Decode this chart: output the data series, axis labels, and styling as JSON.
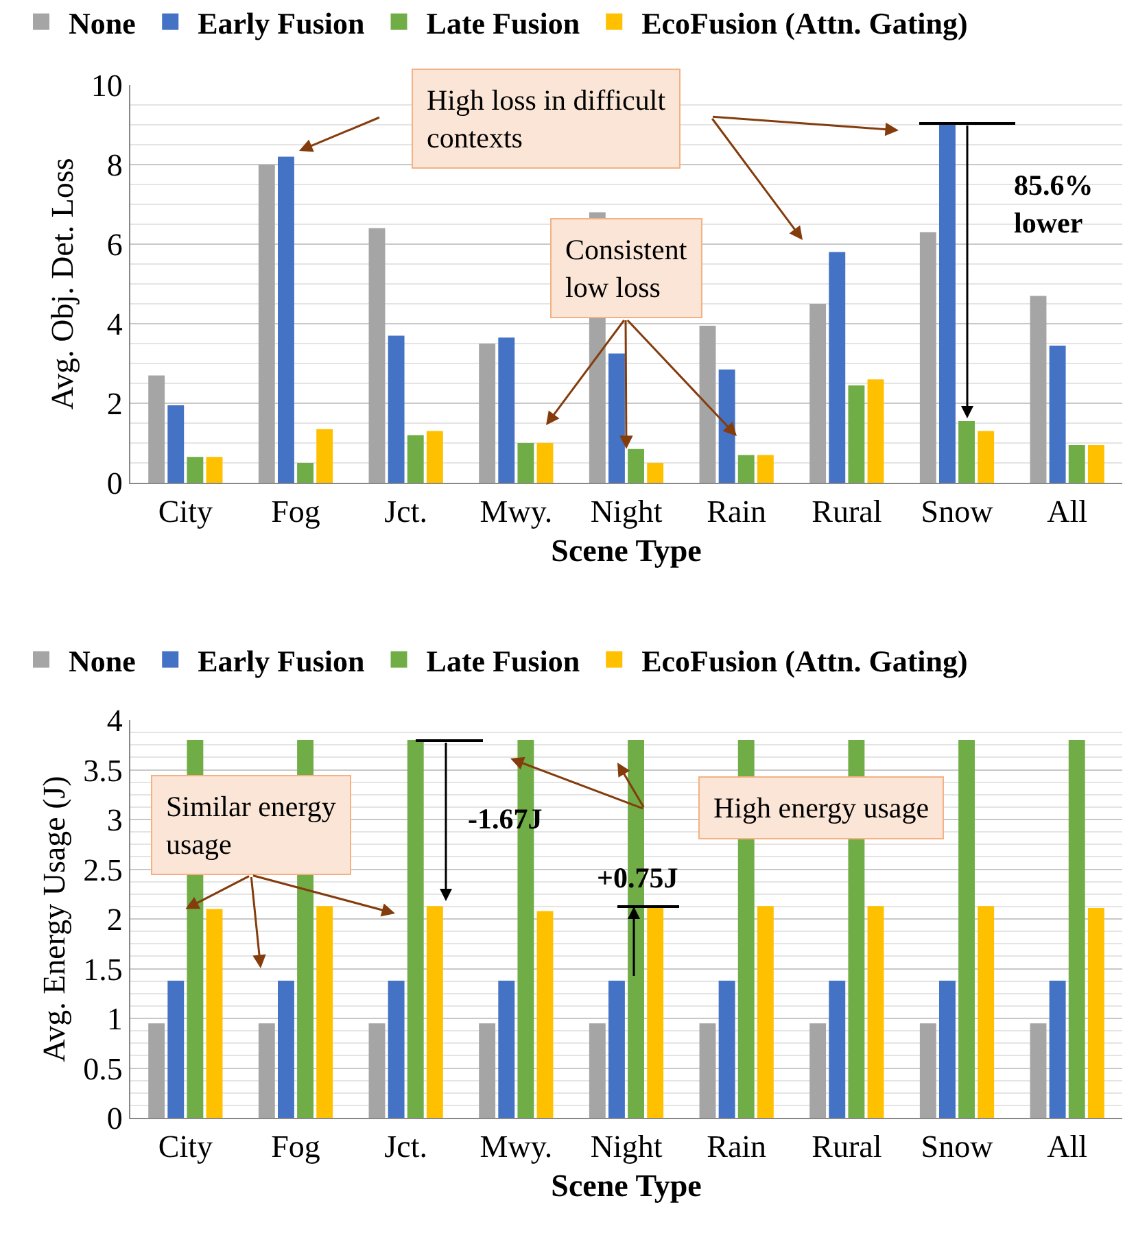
{
  "chart_data": [
    {
      "type": "bar",
      "xlabel": "Scene Type",
      "ylabel": "Avg. Obj. Det. Loss",
      "categories": [
        "City",
        "Fog",
        "Jct.",
        "Mwy.",
        "Night",
        "Rain",
        "Rural",
        "Snow",
        "All"
      ],
      "series": [
        {
          "name": "None",
          "color": "#a5a5a5",
          "values": [
            2.7,
            8.0,
            6.4,
            3.5,
            6.8,
            3.95,
            4.5,
            6.3,
            4.7
          ]
        },
        {
          "name": "Early Fusion",
          "color": "#4472c4",
          "values": [
            1.95,
            8.2,
            3.7,
            3.65,
            3.25,
            2.85,
            5.8,
            9.0,
            3.45
          ]
        },
        {
          "name": "Late Fusion",
          "color": "#70ad47",
          "values": [
            0.65,
            0.5,
            1.2,
            1.0,
            0.85,
            0.7,
            2.45,
            1.55,
            0.95
          ]
        },
        {
          "name": "EcoFusion (Attn. Gating)",
          "color": "#ffc000",
          "values": [
            0.65,
            1.35,
            1.3,
            1.0,
            0.5,
            0.7,
            2.6,
            1.3,
            0.95
          ]
        }
      ],
      "ylim": [
        0,
        10
      ],
      "yticks": [
        0,
        2,
        4,
        6,
        8,
        10
      ],
      "grid": "y",
      "legend": "top",
      "annotations": [
        "High loss in difficult contexts",
        {
          "text": "Consistent low loss",
          "x": "Night",
          "y": 0.85
        },
        "85.6% lower"
      ]
    },
    {
      "type": "bar",
      "xlabel": "Scene Type",
      "ylabel": "Avg. Energy Usage (J)",
      "categories": [
        "City",
        "Fog",
        "Jct.",
        "Mwy.",
        "Night",
        "Rain",
        "Rural",
        "Snow",
        "All"
      ],
      "series": [
        {
          "name": "None",
          "color": "#a5a5a5",
          "values": [
            0.95,
            0.95,
            0.95,
            0.95,
            0.95,
            0.95,
            0.95,
            0.95,
            0.95
          ]
        },
        {
          "name": "Early Fusion",
          "color": "#4472c4",
          "values": [
            1.38,
            1.38,
            1.38,
            1.38,
            1.38,
            1.38,
            1.38,
            1.38,
            1.38
          ]
        },
        {
          "name": "Late Fusion",
          "color": "#70ad47",
          "values": [
            3.8,
            3.8,
            3.8,
            3.8,
            3.8,
            3.8,
            3.8,
            3.8,
            3.8
          ]
        },
        {
          "name": "EcoFusion (Attn. Gating)",
          "color": "#ffc000",
          "values": [
            2.1,
            2.13,
            2.13,
            2.08,
            2.13,
            2.13,
            2.13,
            2.13,
            2.11
          ]
        }
      ],
      "ylim": [
        0,
        4
      ],
      "yticks": [
        0,
        0.5,
        1,
        1.5,
        2,
        2.5,
        3,
        3.5,
        4
      ],
      "grid": "y",
      "legend": "top",
      "annotations": [
        {
          "text": "Similar energy usage",
          "x": "City",
          "y": 2.1
        },
        "High energy usage",
        "-1.67J",
        "+0.75J"
      ]
    }
  ]
}
